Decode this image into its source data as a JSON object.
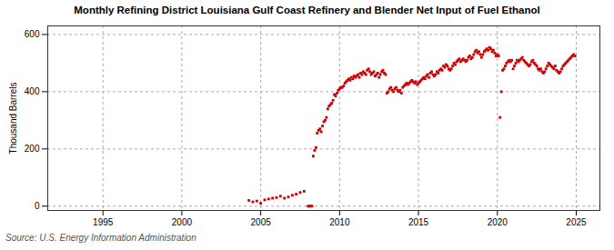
{
  "chart_data": {
    "type": "scatter",
    "title": "Monthly Refining District Louisiana Gulf Coast Refinery and Blender Net Input of Fuel Ethanol",
    "y_label": "Thousand Barrels",
    "source": "Source: U.S. Energy Information Administration",
    "color": "#cc0000",
    "marker": "square",
    "grid": true,
    "xlim": [
      1991.5,
      2026.5
    ],
    "ylim": [
      -15,
      630
    ],
    "xticks": [
      1995,
      2000,
      2005,
      2010,
      2015,
      2020,
      2025
    ],
    "yticks": [
      0,
      200,
      400,
      600
    ],
    "x": [
      2004.25,
      2004.5,
      2004.75,
      2005.0,
      2005.25,
      2005.5,
      2005.75,
      2006.0,
      2006.25,
      2006.5,
      2006.75,
      2007.0,
      2007.25,
      2007.5,
      2007.75,
      2008.0,
      2008.083,
      2008.167,
      2008.25,
      2008.333,
      2008.417,
      2008.5,
      2008.583,
      2008.667,
      2008.75,
      2008.833,
      2008.917,
      2009.0,
      2009.083,
      2009.167,
      2009.25,
      2009.333,
      2009.417,
      2009.5,
      2009.583,
      2009.667,
      2009.75,
      2009.833,
      2009.917,
      2010.0,
      2010.083,
      2010.167,
      2010.25,
      2010.333,
      2010.417,
      2010.5,
      2010.583,
      2010.667,
      2010.75,
      2010.833,
      2010.917,
      2011.0,
      2011.083,
      2011.167,
      2011.25,
      2011.333,
      2011.417,
      2011.5,
      2011.583,
      2011.667,
      2011.75,
      2011.833,
      2011.917,
      2012.0,
      2012.083,
      2012.167,
      2012.25,
      2012.333,
      2012.417,
      2012.5,
      2012.583,
      2012.667,
      2012.75,
      2012.833,
      2012.917,
      2013.0,
      2013.083,
      2013.167,
      2013.25,
      2013.333,
      2013.417,
      2013.5,
      2013.583,
      2013.667,
      2013.75,
      2013.833,
      2013.917,
      2014.0,
      2014.083,
      2014.167,
      2014.25,
      2014.333,
      2014.417,
      2014.5,
      2014.583,
      2014.667,
      2014.75,
      2014.833,
      2014.917,
      2015.0,
      2015.083,
      2015.167,
      2015.25,
      2015.333,
      2015.417,
      2015.5,
      2015.583,
      2015.667,
      2015.75,
      2015.833,
      2015.917,
      2016.0,
      2016.083,
      2016.167,
      2016.25,
      2016.333,
      2016.417,
      2016.5,
      2016.583,
      2016.667,
      2016.75,
      2016.833,
      2016.917,
      2017.0,
      2017.083,
      2017.167,
      2017.25,
      2017.333,
      2017.417,
      2017.5,
      2017.583,
      2017.667,
      2017.75,
      2017.833,
      2017.917,
      2018.0,
      2018.083,
      2018.167,
      2018.25,
      2018.333,
      2018.417,
      2018.5,
      2018.583,
      2018.667,
      2018.75,
      2018.833,
      2018.917,
      2019.0,
      2019.083,
      2019.167,
      2019.25,
      2019.333,
      2019.417,
      2019.5,
      2019.583,
      2019.667,
      2019.75,
      2019.833,
      2019.917,
      2020.0,
      2020.083,
      2020.167,
      2020.25,
      2020.333,
      2020.417,
      2020.5,
      2020.583,
      2020.667,
      2020.75,
      2020.833,
      2020.917,
      2021.0,
      2021.083,
      2021.167,
      2021.25,
      2021.333,
      2021.417,
      2021.5,
      2021.583,
      2021.667,
      2021.75,
      2021.833,
      2021.917,
      2022.0,
      2022.083,
      2022.167,
      2022.25,
      2022.333,
      2022.417,
      2022.5,
      2022.583,
      2022.667,
      2022.75,
      2022.833,
      2022.917,
      2023.0,
      2023.083,
      2023.167,
      2023.25,
      2023.333,
      2023.417,
      2023.5,
      2023.583,
      2023.667,
      2023.75,
      2023.833,
      2023.917,
      2024.0,
      2024.083,
      2024.167,
      2024.25,
      2024.333,
      2024.417,
      2024.5,
      2024.583,
      2024.667,
      2024.75,
      2024.833,
      2024.917
    ],
    "values": [
      20,
      15,
      18,
      10,
      22,
      25,
      28,
      30,
      35,
      28,
      32,
      38,
      42,
      48,
      52,
      0,
      0,
      0,
      0,
      175,
      195,
      205,
      255,
      265,
      270,
      260,
      280,
      295,
      300,
      310,
      340,
      350,
      355,
      360,
      370,
      390,
      385,
      395,
      405,
      410,
      415,
      415,
      420,
      430,
      435,
      440,
      445,
      440,
      450,
      445,
      455,
      450,
      455,
      460,
      450,
      465,
      460,
      470,
      465,
      460,
      475,
      480,
      470,
      460,
      465,
      470,
      455,
      460,
      465,
      450,
      460,
      470,
      475,
      465,
      460,
      395,
      400,
      410,
      415,
      405,
      400,
      410,
      415,
      405,
      400,
      405,
      395,
      415,
      420,
      425,
      430,
      425,
      430,
      435,
      440,
      435,
      430,
      435,
      425,
      430,
      435,
      440,
      445,
      450,
      445,
      455,
      460,
      450,
      465,
      470,
      460,
      455,
      460,
      470,
      465,
      475,
      480,
      475,
      490,
      485,
      495,
      490,
      480,
      475,
      480,
      490,
      500,
      495,
      505,
      510,
      515,
      505,
      510,
      515,
      510,
      505,
      510,
      520,
      525,
      515,
      520,
      530,
      540,
      545,
      535,
      540,
      530,
      520,
      530,
      540,
      545,
      550,
      545,
      555,
      550,
      540,
      545,
      535,
      525,
      530,
      525,
      310,
      400,
      475,
      480,
      490,
      500,
      505,
      510,
      505,
      510,
      480,
      490,
      500,
      510,
      505,
      510,
      515,
      520,
      510,
      505,
      500,
      495,
      490,
      495,
      505,
      510,
      500,
      495,
      490,
      480,
      475,
      480,
      470,
      465,
      470,
      480,
      490,
      500,
      495,
      490,
      485,
      480,
      490,
      475,
      470,
      465,
      470,
      480,
      490,
      495,
      500,
      505,
      510,
      515,
      520,
      525,
      530,
      525
    ]
  }
}
